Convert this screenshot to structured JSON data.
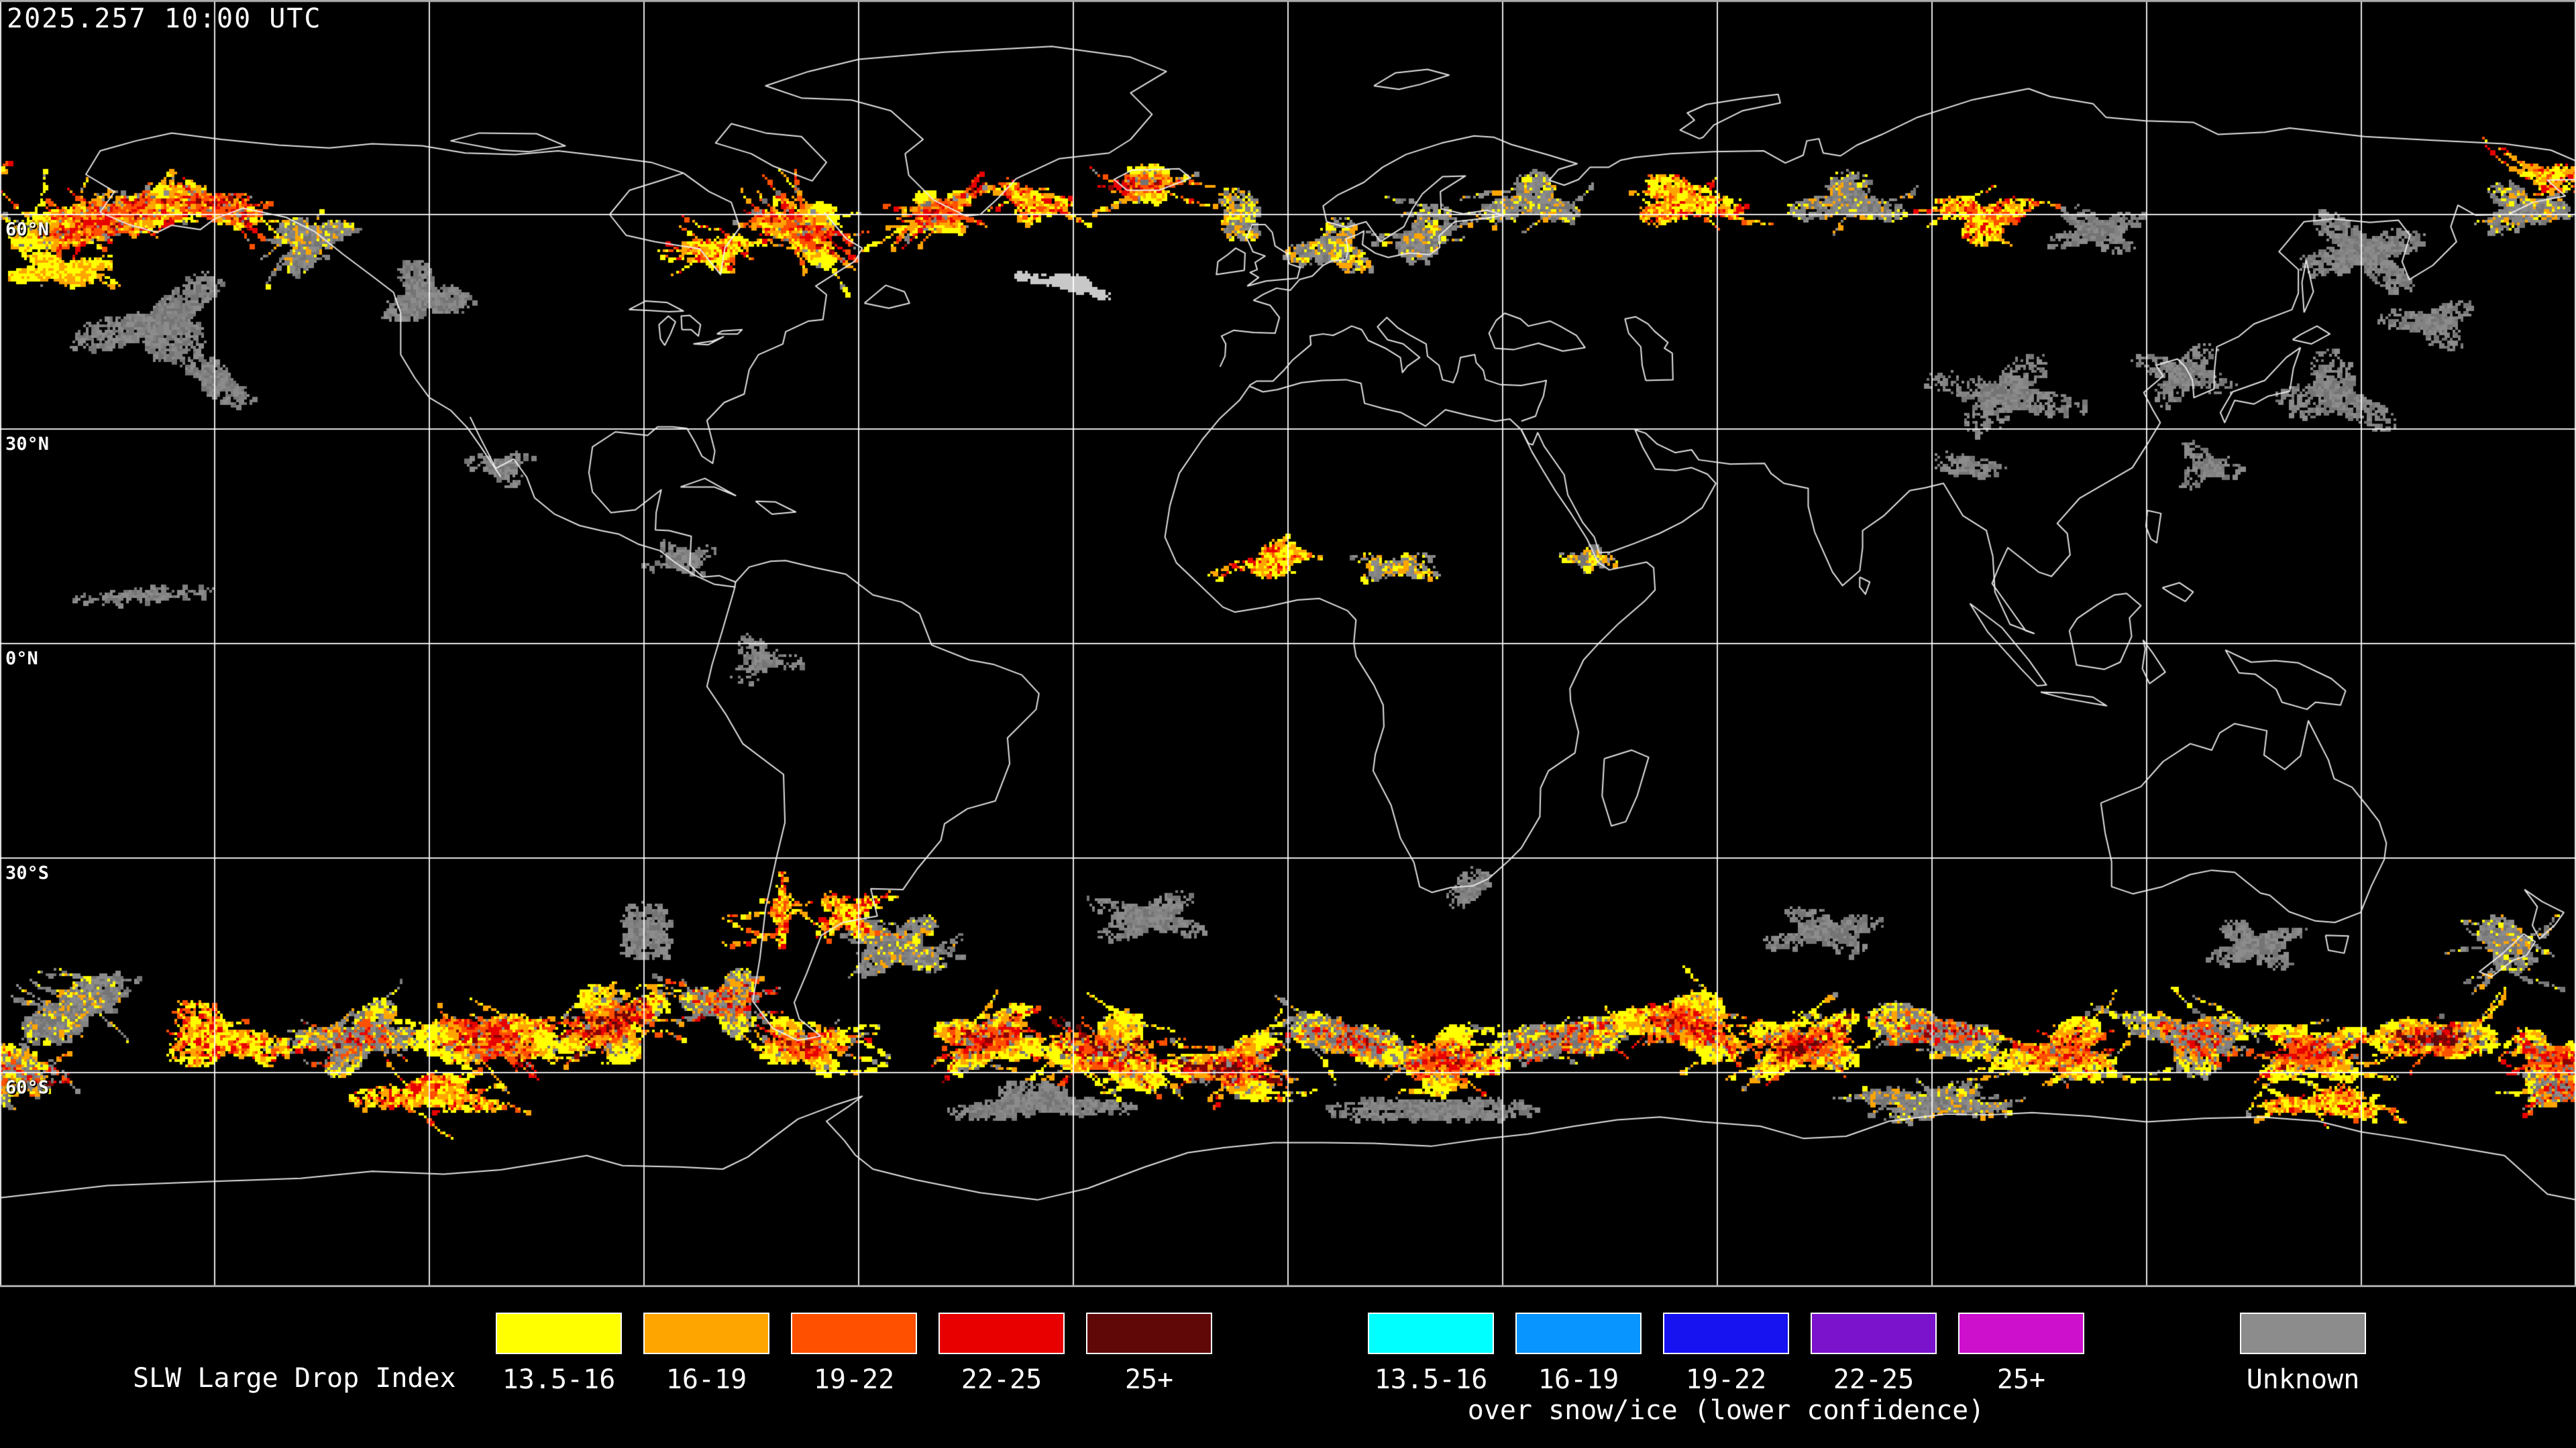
{
  "header": {
    "timestamp": "2025.257 10:00 UTC"
  },
  "map": {
    "lat_labels": [
      {
        "text": "60°N",
        "lat": 60
      },
      {
        "text": "30°N",
        "lat": 30
      },
      {
        "text": "0°N",
        "lat": 0
      },
      {
        "text": "30°S",
        "lat": -30
      },
      {
        "text": "60°S",
        "lat": -60
      }
    ],
    "graticule": {
      "lon_spacing_deg": 30,
      "lat_spacing_deg": 30,
      "line_color": "#FFFFFF",
      "border_color": "#ABABAB",
      "coast_color": "#EDEDED"
    },
    "palette": {
      "yellow": "#FFFF00",
      "orange": "#FFA500",
      "orange_red": "#FF5000",
      "red": "#E80000",
      "dark_red": "#8B0000",
      "maroon": "#600808",
      "gray": "#828282",
      "streak_white": "#C8C8C8"
    },
    "data_regions": [
      {
        "lon": -166,
        "lat": 59.5,
        "rlon": 13,
        "rlat": 5,
        "rot": -15,
        "n": 6500,
        "style": "warm"
      },
      {
        "lon": -151,
        "lat": 61.5,
        "rlon": 7,
        "rlat": 3.5,
        "rot": 10,
        "n": 2200,
        "style": "warm"
      },
      {
        "lon": -172,
        "lat": 52.5,
        "rlon": 8,
        "rlat": 2.5,
        "rot": 0,
        "n": 900,
        "style": "edge"
      },
      {
        "lon": -158,
        "lat": 45,
        "rlon": 13,
        "rlat": 6,
        "rot": -20,
        "n": 2000,
        "style": "gray"
      },
      {
        "lon": -137,
        "lat": 56.5,
        "rlon": 6,
        "rlat": 4,
        "rot": -30,
        "n": 1400,
        "style": "grayMix"
      },
      {
        "lon": -121,
        "lat": 49,
        "rlon": 7,
        "rlat": 5,
        "rot": 0,
        "n": 1100,
        "style": "gray"
      },
      {
        "lon": -68,
        "lat": 58,
        "rlon": 7,
        "rlat": 4.5,
        "rot": 25,
        "n": 3200,
        "style": "warm"
      },
      {
        "lon": -80,
        "lat": 55,
        "rlon": 5,
        "rlat": 3,
        "rot": 0,
        "n": 700,
        "style": "speckWarm"
      },
      {
        "lon": -49,
        "lat": 60.5,
        "rlon": 5,
        "rlat": 3.5,
        "rot": -20,
        "n": 1600,
        "style": "warm"
      },
      {
        "lon": -36,
        "lat": 62,
        "rlon": 6,
        "rlat": 3,
        "rot": 15,
        "n": 700,
        "style": "speckWarm"
      },
      {
        "lon": -20,
        "lat": 64.5,
        "rlon": 6,
        "rlat": 2.5,
        "rot": 0,
        "n": 900,
        "style": "warm"
      },
      {
        "lon": -7,
        "lat": 60,
        "rlon": 6,
        "rlat": 3.5,
        "rot": 20,
        "n": 600,
        "style": "speckMix"
      },
      {
        "lon": -31,
        "lat": 50.5,
        "rlon": 8,
        "rlat": 1.1,
        "rot": 12,
        "n": 450,
        "style": "whiteStreak"
      },
      {
        "lon": 6,
        "lat": 55.5,
        "rlon": 7,
        "rlat": 4.5,
        "rot": 0,
        "n": 800,
        "style": "speckMix"
      },
      {
        "lon": 19,
        "lat": 57.5,
        "rlon": 6,
        "rlat": 4,
        "rot": 0,
        "n": 800,
        "style": "grayMix"
      },
      {
        "lon": 34,
        "lat": 62,
        "rlon": 8,
        "rlat": 4,
        "rot": 0,
        "n": 900,
        "style": "grayMix"
      },
      {
        "lon": 55,
        "lat": 62,
        "rlon": 9,
        "rlat": 4,
        "rot": 5,
        "n": 1000,
        "style": "speckWarm"
      },
      {
        "lon": 78,
        "lat": 62,
        "rlon": 9,
        "rlat": 4,
        "rot": 0,
        "n": 800,
        "style": "grayMix"
      },
      {
        "lon": 97,
        "lat": 60,
        "rlon": 8,
        "rlat": 4,
        "rot": 0,
        "n": 900,
        "style": "speckWarm"
      },
      {
        "lon": 113,
        "lat": 58,
        "rlon": 8,
        "rlat": 4,
        "rot": 0,
        "n": 600,
        "style": "gray"
      },
      {
        "lon": 150,
        "lat": 55,
        "rlon": 11,
        "rlat": 6,
        "rot": 10,
        "n": 1400,
        "style": "gray"
      },
      {
        "lon": 172,
        "lat": 61,
        "rlon": 7,
        "rlat": 4,
        "rot": 0,
        "n": 800,
        "style": "grayMix"
      },
      {
        "lon": 176,
        "lat": 65.5,
        "rlon": 5,
        "rlat": 2.5,
        "rot": 0,
        "n": 400,
        "style": "speckWarm"
      },
      {
        "lon": 100,
        "lat": 35,
        "rlon": 12,
        "rlat": 6,
        "rot": 0,
        "n": 900,
        "style": "gray"
      },
      {
        "lon": 125,
        "lat": 38,
        "rlon": 8,
        "rlat": 5,
        "rot": 0,
        "n": 500,
        "style": "gray"
      },
      {
        "lon": 146,
        "lat": 35,
        "rlon": 10,
        "rlat": 6,
        "rot": 20,
        "n": 700,
        "style": "gray"
      },
      {
        "lon": -150,
        "lat": 37,
        "rlon": 8,
        "rlat": 3,
        "rot": 15,
        "n": 500,
        "style": "gray"
      },
      {
        "lon": 160,
        "lat": 45,
        "rlon": 8,
        "rlat": 4,
        "rot": 0,
        "n": 600,
        "style": "gray"
      },
      {
        "lon": -2,
        "lat": 12,
        "rlon": 6,
        "rlat": 2.5,
        "rot": 0,
        "n": 600,
        "style": "speckWarm"
      },
      {
        "lon": 15,
        "lat": 11,
        "rlon": 8,
        "rlat": 2.5,
        "rot": 0,
        "n": 400,
        "style": "speckMix"
      },
      {
        "lon": 42,
        "lat": 12,
        "rlon": 4,
        "rlat": 2,
        "rot": 0,
        "n": 250,
        "style": "speckMix"
      },
      {
        "lon": -85,
        "lat": 12,
        "rlon": 6,
        "rlat": 3,
        "rot": 0,
        "n": 220,
        "style": "speck"
      },
      {
        "lon": -110,
        "lat": 25,
        "rlon": 6,
        "rlat": 3,
        "rot": 0,
        "n": 200,
        "style": "speck"
      },
      {
        "lon": -74,
        "lat": -2,
        "rlon": 6,
        "rlat": 4,
        "rot": 0,
        "n": 260,
        "style": "speck"
      },
      {
        "lon": -160,
        "lat": 7,
        "rlon": 12,
        "rlat": 1.5,
        "rot": 0,
        "n": 300,
        "style": "speck"
      },
      {
        "lon": 95,
        "lat": 25,
        "rlon": 5,
        "rlat": 3,
        "rot": 0,
        "n": 220,
        "style": "speck"
      },
      {
        "lon": 128,
        "lat": 25,
        "rlon": 6,
        "rlat": 4,
        "rot": 0,
        "n": 260,
        "style": "speck"
      },
      {
        "lon": -170,
        "lat": -51,
        "rlon": 9,
        "rlat": 5,
        "rot": -10,
        "n": 1600,
        "style": "grayMix"
      },
      {
        "lon": -150,
        "lat": -55,
        "rlon": 10,
        "rlat": 5,
        "rot": 10,
        "n": 1300,
        "style": "speckWarm"
      },
      {
        "lon": -130,
        "lat": -55,
        "rlon": 10,
        "rlat": 5,
        "rot": -15,
        "n": 2000,
        "style": "warmGray"
      },
      {
        "lon": -112,
        "lat": -55,
        "rlon": 10,
        "rlat": 6,
        "rot": 15,
        "n": 3000,
        "style": "warm"
      },
      {
        "lon": -95,
        "lat": -53,
        "rlon": 9,
        "rlat": 6,
        "rot": -20,
        "n": 2800,
        "style": "warmCore"
      },
      {
        "lon": -79,
        "lat": -50,
        "rlon": 6,
        "rlat": 5,
        "rot": 0,
        "n": 1600,
        "style": "warmGray"
      },
      {
        "lon": -68,
        "lat": -56,
        "rlon": 7,
        "rlat": 4,
        "rot": 10,
        "n": 1500,
        "style": "warm"
      },
      {
        "lon": -55,
        "lat": -42,
        "rlon": 8,
        "rlat": 5,
        "rot": 0,
        "n": 1300,
        "style": "grayMix"
      },
      {
        "lon": -42,
        "lat": -55,
        "rlon": 9,
        "rlat": 5,
        "rot": -10,
        "n": 2400,
        "style": "warm"
      },
      {
        "lon": -25,
        "lat": -57,
        "rlon": 9,
        "rlat": 6,
        "rot": 10,
        "n": 3300,
        "style": "warmCore"
      },
      {
        "lon": -8,
        "lat": -59,
        "rlon": 9,
        "rlat": 5,
        "rot": -5,
        "n": 3000,
        "style": "warmCore"
      },
      {
        "lon": 8,
        "lat": -55,
        "rlon": 8,
        "rlat": 5,
        "rot": 15,
        "n": 2000,
        "style": "warmGray"
      },
      {
        "lon": 22,
        "lat": -58,
        "rlon": 9,
        "rlat": 5,
        "rot": 0,
        "n": 2400,
        "style": "warm"
      },
      {
        "lon": 38,
        "lat": -55,
        "rlon": 9,
        "rlat": 5,
        "rot": -10,
        "n": 2200,
        "style": "warmGray"
      },
      {
        "lon": 55,
        "lat": -53,
        "rlon": 10,
        "rlat": 5,
        "rot": 10,
        "n": 2600,
        "style": "warm"
      },
      {
        "lon": 72,
        "lat": -56,
        "rlon": 10,
        "rlat": 5,
        "rot": -10,
        "n": 2400,
        "style": "warmCore"
      },
      {
        "lon": 90,
        "lat": -54,
        "rlon": 10,
        "rlat": 5,
        "rot": 5,
        "n": 1800,
        "style": "warmGray"
      },
      {
        "lon": 108,
        "lat": -57,
        "rlon": 10,
        "rlat": 5,
        "rot": -5,
        "n": 2000,
        "style": "warm"
      },
      {
        "lon": 126,
        "lat": -55,
        "rlon": 10,
        "rlat": 5,
        "rot": 10,
        "n": 1600,
        "style": "warmGray"
      },
      {
        "lon": 143,
        "lat": -57,
        "rlon": 9,
        "rlat": 5,
        "rot": 0,
        "n": 1800,
        "style": "warm"
      },
      {
        "lon": 160,
        "lat": -55,
        "rlon": 9,
        "rlat": 5,
        "rot": -10,
        "n": 2000,
        "style": "warmCore"
      },
      {
        "lon": 176,
        "lat": -58,
        "rlon": 6,
        "rlat": 5,
        "rot": 0,
        "n": 1600,
        "style": "warm"
      },
      {
        "lon": -35,
        "lat": -64,
        "rlon": 15,
        "rlat": 3,
        "rot": 0,
        "n": 1600,
        "style": "gray"
      },
      {
        "lon": 20,
        "lat": -65,
        "rlon": 15,
        "rlat": 3,
        "rot": 0,
        "n": 1300,
        "style": "gray"
      },
      {
        "lon": 90,
        "lat": -64,
        "rlon": 12,
        "rlat": 3,
        "rot": 0,
        "n": 1100,
        "style": "grayMix"
      },
      {
        "lon": 145,
        "lat": -64,
        "rlon": 10,
        "rlat": 2.5,
        "rot": 0,
        "n": 900,
        "style": "speckWarm"
      },
      {
        "lon": -120,
        "lat": -63,
        "rlon": 12,
        "rlat": 3,
        "rot": 0,
        "n": 1100,
        "style": "speckWarm"
      },
      {
        "lon": -20,
        "lat": -38,
        "rlon": 10,
        "rlat": 4,
        "rot": 0,
        "n": 800,
        "style": "gray"
      },
      {
        "lon": -90,
        "lat": -40,
        "rlon": 8,
        "rlat": 4,
        "rot": 0,
        "n": 600,
        "style": "gray"
      },
      {
        "lon": 75,
        "lat": -40,
        "rlon": 10,
        "rlat": 4,
        "rot": 0,
        "n": 700,
        "style": "gray"
      },
      {
        "lon": 135,
        "lat": -42,
        "rlon": 8,
        "rlat": 4,
        "rot": 0,
        "n": 600,
        "style": "gray"
      },
      {
        "lon": 170,
        "lat": -42,
        "rlon": 6,
        "rlat": 4,
        "rot": 0,
        "n": 700,
        "style": "grayMix"
      },
      {
        "lon": -62,
        "lat": -38,
        "rlon": 5,
        "rlat": 4,
        "rot": 0,
        "n": 450,
        "style": "speckWarm"
      },
      {
        "lon": -71,
        "lat": -37,
        "rlon": 1.5,
        "rlat": 6,
        "rot": 0,
        "n": 350,
        "style": "speckWarm"
      },
      {
        "lon": 25,
        "lat": -34,
        "rlon": 5,
        "rlat": 3,
        "rot": 0,
        "n": 250,
        "style": "speck"
      },
      {
        "lon": -178,
        "lat": -60,
        "rlon": 6,
        "rlat": 4,
        "rot": 0,
        "n": 800,
        "style": "warmGray"
      },
      {
        "lon": 178,
        "lat": -62,
        "rlon": 5,
        "rlat": 4,
        "rot": 0,
        "n": 700,
        "style": "warmGray"
      }
    ]
  },
  "legend": {
    "title": "SLW Large Drop Index",
    "bins": [
      {
        "label": "13.5-16",
        "color": "#FFFF00"
      },
      {
        "label": "16-19",
        "color": "#FFA500"
      },
      {
        "label": "19-22",
        "color": "#FF5000"
      },
      {
        "label": "22-25",
        "color": "#E80000"
      },
      {
        "label": "25+",
        "color": "#600808"
      }
    ],
    "snow_bins": [
      {
        "label": "13.5-16",
        "color": "#00FFFF"
      },
      {
        "label": "16-19",
        "color": "#0995FF"
      },
      {
        "label": "19-22",
        "color": "#1612F0"
      },
      {
        "label": "22-25",
        "color": "#7B12CC"
      },
      {
        "label": "25+",
        "color": "#CC10CC"
      }
    ],
    "snow_note": "over snow/ice (lower confidence)",
    "unknown": {
      "label": "Unknown",
      "color": "#8C8C8C"
    }
  }
}
